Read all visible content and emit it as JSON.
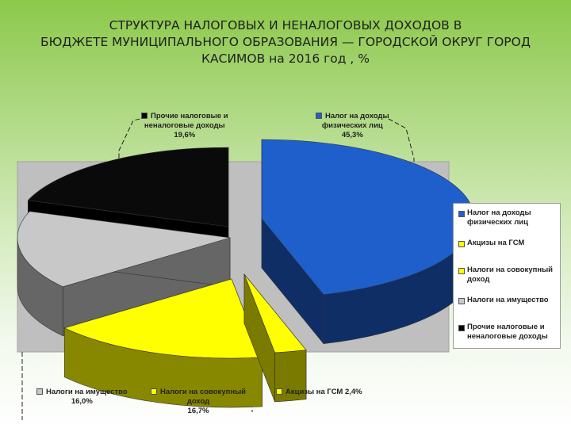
{
  "title_lines": [
    "СТРУКТУРА НАЛОГОВЫХ И НЕНАЛОГОВЫХ ДОХОДОВ В",
    "БЮДЖЕТЕ МУНИЦИПАЛЬНОГО ОБРАЗОВАНИЯ — ГОРОДСКОЙ ОКРУГ ГОРОД",
    "КАСИМОВ  на 2016 год , %"
  ],
  "chart_data": {
    "type": "pie",
    "title": "СТРУКТУРА НАЛОГОВЫХ И НЕНАЛОГОВЫХ ДОХОДОВ В БЮДЖЕТЕ МУНИЦИПАЛЬНОГО ОБРАЗОВАНИЯ — ГОРОДСКОЙ ОКРУГ ГОРОД КАСИМОВ  на 2016 год , %",
    "style": "3d-exploded",
    "legend_position": "right",
    "slices": [
      {
        "label": "Налог на доходы физических лиц",
        "value": 45.3,
        "value_label": "45,3%",
        "color": "#1f5fcc",
        "side_color": "#0f2e66"
      },
      {
        "label": "Акцизы на ГСМ",
        "value": 2.4,
        "value_label": "2,4%",
        "color": "#ffff00",
        "side_color": "#7a7a00"
      },
      {
        "label": "Налоги на совокупный доход",
        "value": 16.7,
        "value_label": "16,7%",
        "color": "#ffff00",
        "side_color": "#888800"
      },
      {
        "label": "Налоги на имущество",
        "value": 16.0,
        "value_label": "16,0%",
        "color": "#c8c8c8",
        "side_color": "#666666"
      },
      {
        "label": "Прочие налоговые и неналоговые доходы",
        "value": 19.6,
        "value_label": "19,6%",
        "color": "#0a0a0a",
        "side_color": "#000000"
      }
    ],
    "callouts": [
      {
        "lines": [
          "Прочие налоговые и",
          "неналоговые доходы",
          "19,6%"
        ],
        "color": "#000000"
      },
      {
        "lines": [
          "Налог на доходы",
          "физических лиц",
          "45,3%"
        ],
        "color": "#1f5fcc"
      },
      {
        "lines": [
          "Налоги на имущество",
          "16,0%"
        ],
        "color": "#c8c8c8"
      },
      {
        "lines": [
          "Налоги на совокупный",
          "доход",
          "16,7%"
        ],
        "color": "#ffff00"
      },
      {
        "lines": [
          "Акцизы на ГСМ 2,4%"
        ],
        "color": "#ffff00"
      }
    ],
    "legend": [
      {
        "lines": [
          "Налог на доходы",
          "физических лиц"
        ],
        "color": "#1f5fcc"
      },
      {
        "lines": [
          "Акцизы на ГСМ"
        ],
        "color": "#ffff00"
      },
      {
        "lines": [
          "Налоги на совокупный",
          "доход"
        ],
        "color": "#ffff00"
      },
      {
        "lines": [
          "Налоги на имущество"
        ],
        "color": "#c8c8c8"
      },
      {
        "lines": [
          "Прочие налоговые и",
          "неналоговые доходы"
        ],
        "color": "#000000"
      }
    ]
  }
}
